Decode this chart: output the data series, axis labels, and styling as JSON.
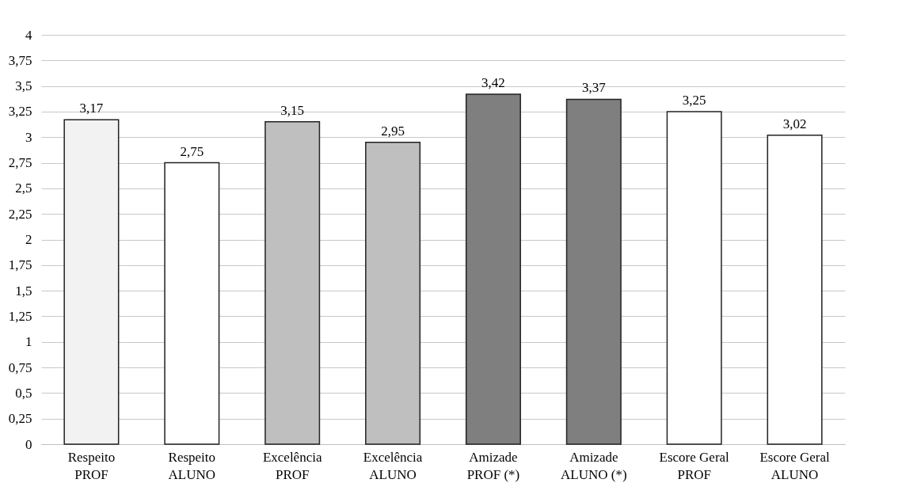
{
  "chart_data": {
    "type": "bar",
    "categories": [
      "Respeito\nPROF",
      "Respeito\nALUNO",
      "Excelência\nPROF",
      "Excelência\nALUNO",
      "Amizade\nPROF (*)",
      "Amizade\nALUNO (*)",
      "Escore Geral\nPROF",
      "Escore Geral\nALUNO"
    ],
    "values": [
      3.17,
      2.75,
      3.15,
      2.95,
      3.42,
      3.37,
      3.25,
      3.02
    ],
    "value_labels": [
      "3,17",
      "2,75",
      "3,15",
      "2,95",
      "3,42",
      "3,37",
      "3,25",
      "3,02"
    ],
    "colors": [
      "#f2f2f2",
      "#ffffff",
      "#bfbfbf",
      "#bfbfbf",
      "#7f7f7f",
      "#7f7f7f",
      "#ffffff",
      "#ffffff"
    ],
    "ylim": [
      0,
      4
    ],
    "yticks": [
      0,
      {
        "value": 0.25,
        "label": "0,25"
      },
      {
        "value": 0.5,
        "label": "0,5"
      },
      {
        "value": 0.75,
        "label": "0,75"
      },
      1,
      {
        "value": 1.25,
        "label": "1,25"
      },
      {
        "value": 1.5,
        "label": "1,5"
      },
      {
        "value": 1.75,
        "label": "1,75"
      },
      2,
      {
        "value": 2.25,
        "label": "2,25"
      },
      {
        "value": 2.5,
        "label": "2,5"
      },
      {
        "value": 2.75,
        "label": "2,75"
      },
      3,
      {
        "value": 3.25,
        "label": "3,25"
      },
      {
        "value": 3.5,
        "label": "3,5"
      },
      {
        "value": 3.75,
        "label": "3,75"
      },
      4
    ],
    "grid": "y"
  }
}
